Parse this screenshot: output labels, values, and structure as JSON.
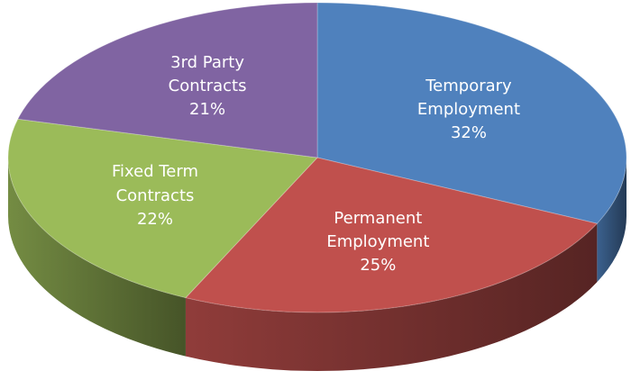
{
  "chart_data": {
    "type": "pie",
    "categories": [
      "Temporary Employment",
      "Permanent Employment",
      "Fixed Term Contracts",
      "3rd Party Contracts"
    ],
    "values": [
      32,
      25,
      22,
      21
    ],
    "value_labels": [
      "32%",
      "25%",
      "22%",
      "21%"
    ],
    "colors": [
      "#4f81bd",
      "#c0504d",
      "#9bbb59",
      "#8064a2"
    ]
  }
}
